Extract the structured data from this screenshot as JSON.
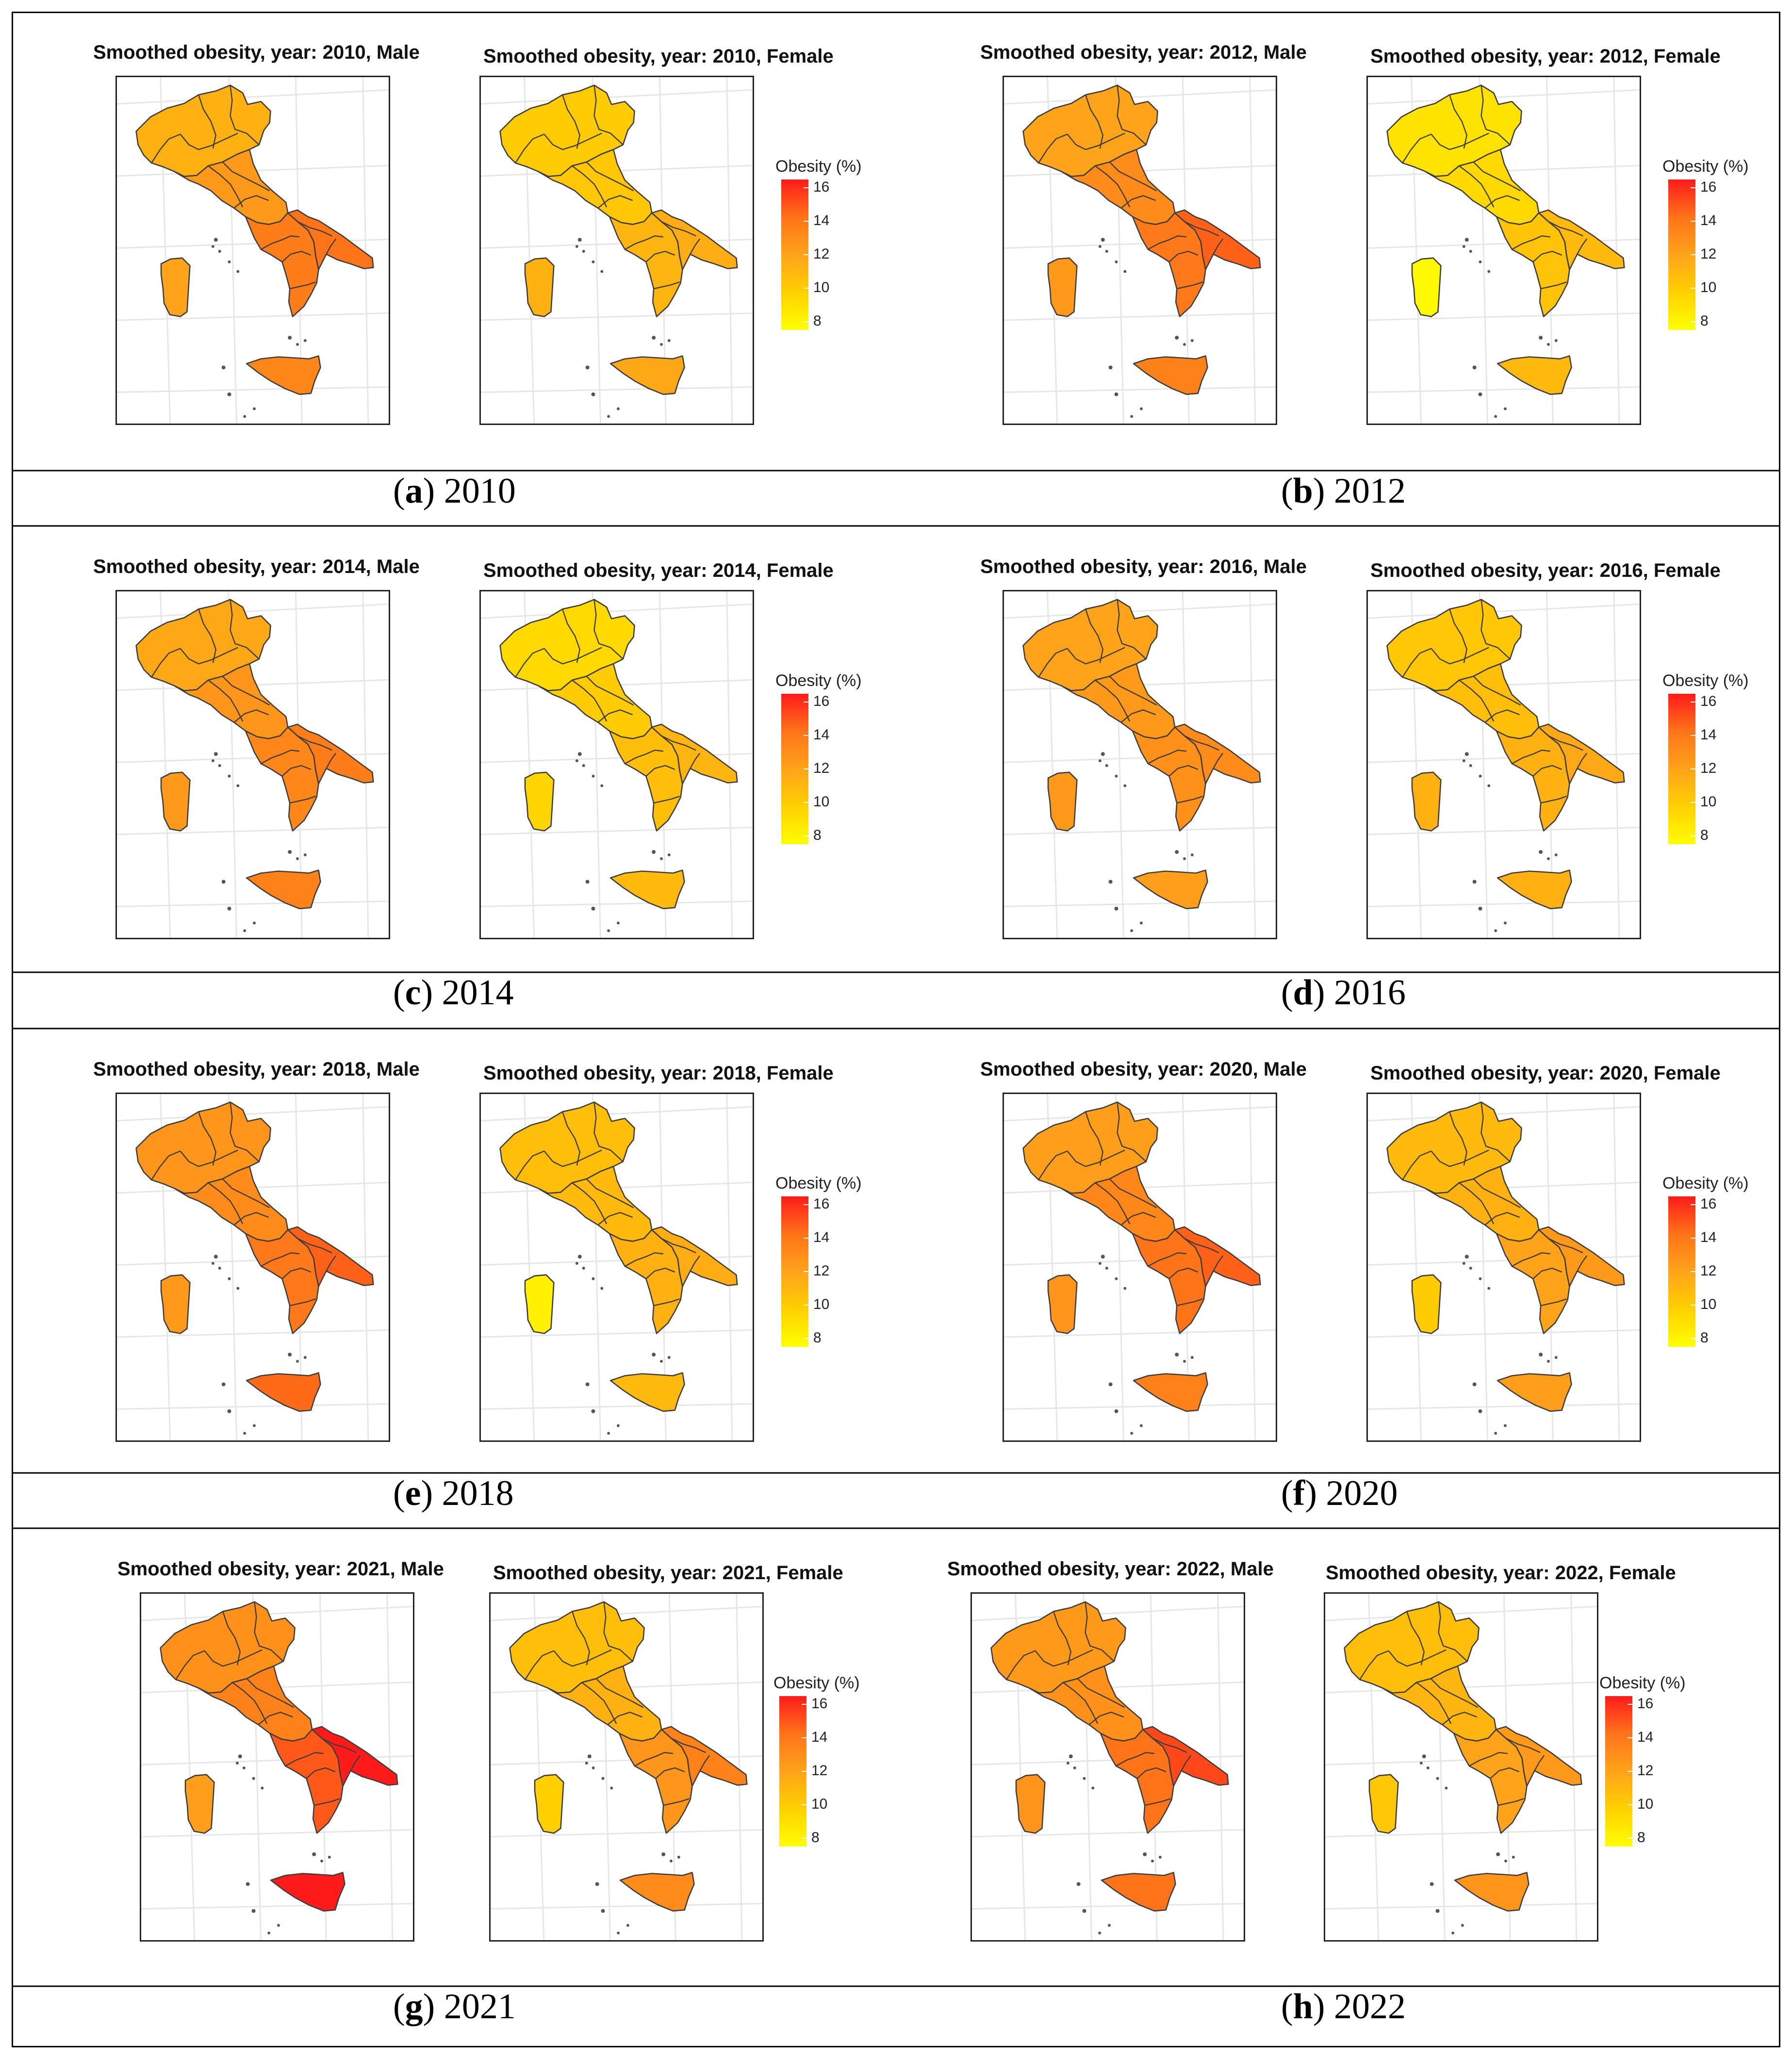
{
  "legend": {
    "title": "Obesity (%)",
    "ticks": [
      "16",
      "14",
      "12",
      "10",
      "8"
    ],
    "range": [
      7.5,
      16.5
    ],
    "palette": [
      "#ffff00",
      "#ffd000",
      "#ffa31a",
      "#ff7319",
      "#ff1a1a"
    ]
  },
  "rows": [
    {
      "cells": [
        {
          "caption_letter": "a",
          "caption_year": "2010",
          "panels": [
            {
              "title": "Smoothed obesity, year: 2010, Male",
              "values": {
                "north": 11.4,
                "center": 12.4,
                "south": 13.6,
                "southeast": 14.0,
                "sicily": 13.2,
                "sardinia": 12.0
              }
            },
            {
              "title": "Smoothed obesity, year: 2010, Female",
              "values": {
                "north": 10.2,
                "center": 10.4,
                "south": 11.2,
                "southeast": 11.6,
                "sicily": 11.8,
                "sardinia": 11.4
              }
            }
          ]
        },
        {
          "caption_letter": "b",
          "caption_year": "2012",
          "panels": [
            {
              "title": "Smoothed obesity, year: 2012, Male",
              "values": {
                "north": 12.0,
                "center": 13.0,
                "south": 13.8,
                "southeast": 14.4,
                "sicily": 13.4,
                "sardinia": 12.4
              }
            },
            {
              "title": "Smoothed obesity, year: 2012, Female",
              "values": {
                "north": 9.2,
                "center": 9.6,
                "south": 10.6,
                "southeast": 11.0,
                "sicily": 11.0,
                "sardinia": 8.2
              }
            }
          ]
        }
      ]
    },
    {
      "cells": [
        {
          "caption_letter": "c",
          "caption_year": "2014",
          "panels": [
            {
              "title": "Smoothed obesity, year: 2014, Male",
              "values": {
                "north": 11.8,
                "center": 12.6,
                "south": 13.2,
                "southeast": 13.6,
                "sicily": 13.4,
                "sardinia": 12.4
              }
            },
            {
              "title": "Smoothed obesity, year: 2014, Female",
              "values": {
                "north": 9.6,
                "center": 10.2,
                "south": 10.8,
                "southeast": 11.2,
                "sicily": 11.0,
                "sardinia": 9.8
              }
            }
          ]
        },
        {
          "caption_letter": "d",
          "caption_year": "2016",
          "panels": [
            {
              "title": "Smoothed obesity, year: 2016, Male",
              "values": {
                "north": 12.0,
                "center": 12.4,
                "south": 12.8,
                "southeast": 13.0,
                "sicily": 12.2,
                "sardinia": 12.4
              }
            },
            {
              "title": "Smoothed obesity, year: 2016, Female",
              "values": {
                "north": 10.4,
                "center": 10.8,
                "south": 11.4,
                "southeast": 11.8,
                "sicily": 11.4,
                "sardinia": 11.4
              }
            }
          ]
        }
      ]
    },
    {
      "cells": [
        {
          "caption_letter": "e",
          "caption_year": "2018",
          "panels": [
            {
              "title": "Smoothed obesity, year: 2018, Male",
              "values": {
                "north": 12.6,
                "center": 13.0,
                "south": 13.8,
                "southeast": 14.4,
                "sicily": 14.2,
                "sardinia": 12.4
              }
            },
            {
              "title": "Smoothed obesity, year: 2018, Female",
              "values": {
                "north": 10.8,
                "center": 11.0,
                "south": 11.4,
                "southeast": 11.6,
                "sicily": 11.0,
                "sardinia": 8.6
              }
            }
          ]
        },
        {
          "caption_letter": "f",
          "caption_year": "2020",
          "panels": [
            {
              "title": "Smoothed obesity, year: 2020, Male",
              "values": {
                "north": 12.2,
                "center": 13.2,
                "south": 14.0,
                "southeast": 14.4,
                "sicily": 13.4,
                "sardinia": 12.6
              }
            },
            {
              "title": "Smoothed obesity, year: 2020, Female",
              "values": {
                "north": 11.0,
                "center": 11.4,
                "south": 12.0,
                "southeast": 12.4,
                "sicily": 12.2,
                "sardinia": 10.2
              }
            }
          ]
        }
      ]
    },
    {
      "cells": [
        {
          "caption_letter": "g",
          "caption_year": "2021",
          "panels": [
            {
              "title": "Smoothed obesity, year: 2021, Male",
              "values": {
                "north": 12.8,
                "center": 13.4,
                "south": 14.6,
                "southeast": 16.0,
                "sicily": 16.2,
                "sardinia": 12.2
              }
            },
            {
              "title": "Smoothed obesity, year: 2021, Female",
              "values": {
                "north": 10.8,
                "center": 11.4,
                "south": 12.6,
                "southeast": 13.4,
                "sicily": 13.0,
                "sardinia": 10.0
              }
            }
          ]
        },
        {
          "caption_letter": "h",
          "caption_year": "2022",
          "panels": [
            {
              "title": "Smoothed obesity, year: 2022, Male",
              "values": {
                "north": 12.4,
                "center": 12.8,
                "south": 14.0,
                "southeast": 15.0,
                "sicily": 14.0,
                "sardinia": 12.6
              }
            },
            {
              "title": "Smoothed obesity, year: 2022, Female",
              "values": {
                "north": 10.8,
                "center": 11.2,
                "south": 12.0,
                "southeast": 12.4,
                "sicily": 12.6,
                "sardinia": 10.4
              }
            }
          ]
        }
      ]
    }
  ]
}
